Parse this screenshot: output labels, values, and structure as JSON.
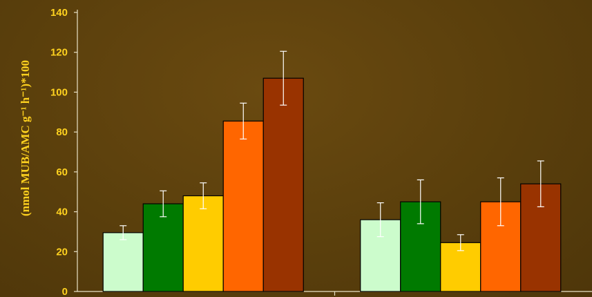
{
  "chart_data": {
    "type": "bar",
    "title": "",
    "xlabel": "",
    "ylabel": "(nmol MUB/AMC g⁻¹ h⁻¹)*100",
    "ylim": [
      0,
      140
    ],
    "yticks": [
      0,
      20,
      40,
      60,
      80,
      100,
      120,
      140
    ],
    "categories": [
      "",
      ""
    ],
    "series": [
      {
        "color": "#ccfccc",
        "values": [
          29.5,
          36.0
        ],
        "errors": [
          3.5,
          8.5
        ]
      },
      {
        "color": "#007a00",
        "values": [
          44.0,
          45.0
        ],
        "errors": [
          6.5,
          11.0
        ]
      },
      {
        "color": "#ffcc00",
        "values": [
          48.0,
          24.5
        ],
        "errors": [
          6.5,
          4.0
        ]
      },
      {
        "color": "#ff6600",
        "values": [
          85.5,
          45.0
        ],
        "errors": [
          9.0,
          12.0
        ]
      },
      {
        "color": "#993300",
        "values": [
          107.0,
          54.0
        ],
        "errors": [
          13.5,
          11.5
        ]
      }
    ],
    "grid": false,
    "legend": "none"
  }
}
